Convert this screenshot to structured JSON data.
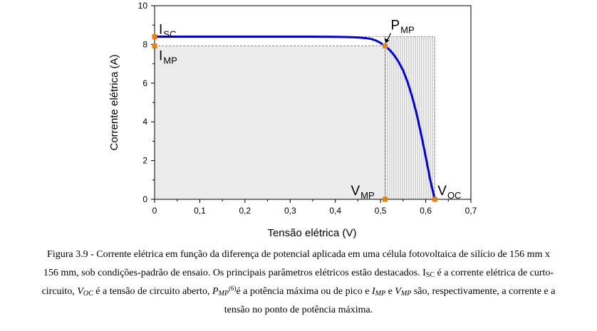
{
  "chart_data": {
    "type": "line",
    "xlabel": "Tensão elétrica (V)",
    "ylabel": "Corrente elétrica (A)",
    "xlim": [
      0,
      0.7
    ],
    "ylim": [
      0,
      10
    ],
    "x_ticks": [
      "0",
      "0,1",
      "0,2",
      "0,3",
      "0,4",
      "0,5",
      "0,6",
      "0,7"
    ],
    "y_ticks": [
      "0",
      "2",
      "4",
      "6",
      "8",
      "10"
    ],
    "series": [
      {
        "x": [
          0,
          0.05,
          0.1,
          0.15,
          0.2,
          0.25,
          0.3,
          0.35,
          0.4,
          0.43,
          0.45,
          0.47,
          0.48,
          0.49,
          0.5,
          0.51,
          0.52,
          0.53,
          0.54,
          0.55,
          0.56,
          0.57,
          0.58,
          0.59,
          0.6,
          0.61,
          0.62
        ],
        "y": [
          8.4,
          8.4,
          8.4,
          8.4,
          8.4,
          8.4,
          8.4,
          8.4,
          8.39,
          8.38,
          8.36,
          8.32,
          8.28,
          8.2,
          8.08,
          7.92,
          7.72,
          7.45,
          7.1,
          6.65,
          6.05,
          5.3,
          4.4,
          3.35,
          2.2,
          1.0,
          0.0
        ]
      }
    ],
    "key_points": [
      {
        "x": 0,
        "y": 8.4
      },
      {
        "x": 0,
        "y": 7.92
      },
      {
        "x": 0.51,
        "y": 7.92
      },
      {
        "x": 0.51,
        "y": 0
      },
      {
        "x": 0.62,
        "y": 0
      }
    ],
    "annotations": {
      "isc": {
        "main": "I",
        "sub": "SC"
      },
      "imp": {
        "main": "I",
        "sub": "MP"
      },
      "pmp": {
        "main": "P",
        "sub": "MP"
      },
      "vmp": {
        "main": "V",
        "sub": "MP"
      },
      "voc": {
        "main": "V",
        "sub": "OC"
      }
    },
    "curve_color": "#0000e6",
    "marker_color": "#f08000",
    "grid": false
  },
  "caption": {
    "line1": "Figura 3.9 - Corrente elétrica em função da diferença de potencial aplicada em uma célula fotovoltaica de silício de 156 mm x",
    "line2a": "156 mm, sob condições-padrão de ensaio. Os principais parâmetros elétricos estão destacados. I",
    "line2_sub": "SC",
    "line2b": " é a corrente elétrica de curto-",
    "line3a": "circuito, ",
    "line3_voc": "V",
    "line3_voc_sub": "OC",
    "line3b": " é a tensão de circuito aberto, ",
    "line3_pmp": "P",
    "line3_pmp_sub": "MP",
    "line3_ref": "(6)",
    "line3c": "é a potência máxima ou de pico e ",
    "line3_imp": "I",
    "line3_imp_sub": "MP",
    "line3d": " e ",
    "line3_vmp": "V",
    "line3_vmp_sub": "MP",
    "line3e": " são, respectivamente, a corrente e a",
    "line4": "tensão no ponto de potência máxima."
  }
}
